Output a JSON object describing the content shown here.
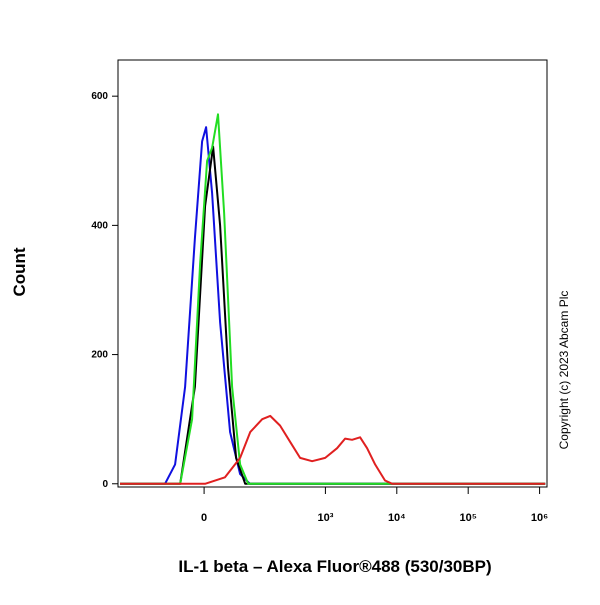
{
  "chart_data": {
    "type": "line",
    "xlabel": "IL-1 beta – Alexa Fluor®488 (530/30BP)",
    "ylabel": "Count",
    "annotation": "Copyright (c) 2023 Abcam Plc",
    "xscale": "arcsinh",
    "xscale_cofactor": 40,
    "xlim": [
      -320,
      1270000
    ],
    "xticks": [
      0,
      {
        "value": 1000,
        "label": "10³"
      },
      {
        "value": 10000,
        "label": "10⁴"
      },
      {
        "value": 100000,
        "label": "10⁵"
      },
      {
        "value": 1000000,
        "label": "10⁶"
      }
    ],
    "ylim": [
      -5,
      656
    ],
    "yticks": [
      0,
      200,
      400,
      600
    ],
    "series": [
      {
        "name": "blue",
        "color": "#1010e0",
        "x": [
          -300,
          -65,
          -43,
          -26,
          -12,
          -2.6,
          2.6,
          10.4,
          21.6,
          37.6,
          57.6,
          83,
          1200000
        ],
        "values": [
          0,
          0,
          30,
          150,
          380,
          530,
          552,
          450,
          250,
          80,
          15,
          0,
          0
        ]
      },
      {
        "name": "black",
        "color": "#000000",
        "x": [
          -300,
          -34,
          -12,
          1.3,
          11.8,
          21.6,
          34,
          49,
          70,
          1200000
        ],
        "values": [
          0,
          0,
          150,
          430,
          522,
          400,
          180,
          40,
          0,
          0
        ]
      },
      {
        "name": "green",
        "color": "#22dd22",
        "x": [
          -300,
          -34,
          -15.9,
          -5.2,
          3.9,
          10.4,
          18.6,
          27.7,
          41.3,
          57.6,
          78,
          1200000
        ],
        "values": [
          0,
          0,
          100,
          340,
          500,
          520,
          572,
          420,
          150,
          30,
          0,
          0
        ]
      },
      {
        "name": "red",
        "color": "#e02020",
        "x": [
          -300,
          1.3,
          29,
          57.6,
          84,
          127,
          166,
          230,
          319,
          442,
          651,
          992,
          1460,
          1888,
          2368,
          3064,
          3844,
          4960,
          6840,
          8640,
          1200000
        ],
        "values": [
          0,
          0,
          10,
          40,
          80,
          100,
          105,
          90,
          65,
          40,
          35,
          40,
          55,
          70,
          68,
          72,
          55,
          30,
          5,
          0,
          0
        ]
      }
    ]
  }
}
